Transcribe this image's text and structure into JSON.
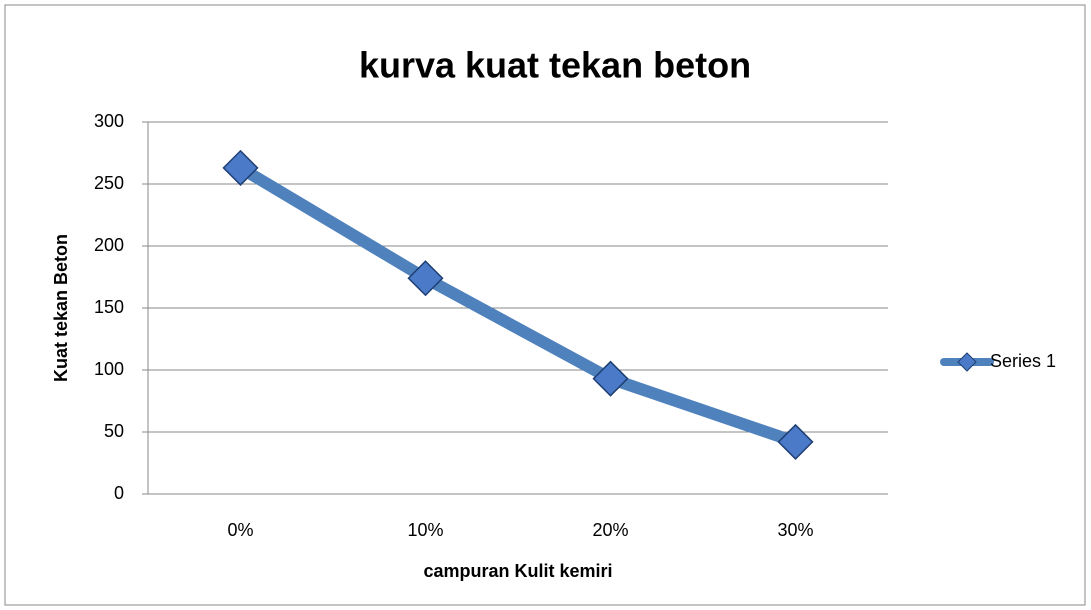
{
  "chart_data": {
    "type": "line",
    "title": "kurva kuat tekan beton",
    "x_label": "campuran Kulit kemiri",
    "y_label": "Kuat tekan Beton",
    "categories": [
      "0%",
      "10%",
      "20%",
      "30%"
    ],
    "series": [
      {
        "name": "Series 1",
        "color": "#4f81bd",
        "values": [
          263,
          174,
          93,
          42
        ]
      }
    ],
    "ylim": [
      0,
      300
    ],
    "yticks": [
      0,
      50,
      100,
      150,
      200,
      250,
      300
    ],
    "grid": true,
    "legend": "right"
  }
}
